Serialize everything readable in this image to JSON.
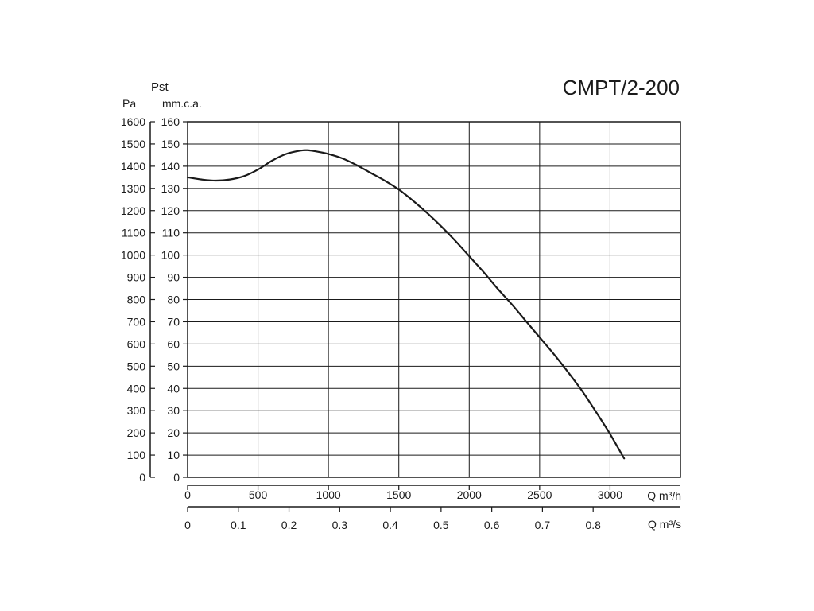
{
  "chart_data": {
    "type": "line",
    "title": "CMPT/2-200",
    "y_axis_title": "Pst",
    "y_left_unit": "Pa",
    "y_right_unit": "mm.c.a.",
    "x_top_unit": "Q m³/h",
    "x_bottom_unit": "Q m³/s",
    "grid": true,
    "x_top": {
      "range": [
        0,
        3500
      ],
      "ticks": [
        0,
        500,
        1000,
        1500,
        2000,
        2500,
        3000
      ],
      "tick_labels": [
        "0",
        "500",
        "1000",
        "1500",
        "2000",
        "2500",
        "3000"
      ]
    },
    "x_bottom": {
      "range": [
        0,
        0.9722
      ],
      "ticks": [
        0,
        0.1,
        0.2,
        0.3,
        0.4,
        0.5,
        0.6,
        0.7,
        0.8
      ],
      "tick_labels": [
        "0",
        "0.1",
        "0.2",
        "0.3",
        "0.4",
        "0.5",
        "0.6",
        "0.7",
        "0.8"
      ]
    },
    "y_left": {
      "range": [
        0,
        1600
      ],
      "ticks": [
        0,
        100,
        200,
        300,
        400,
        500,
        600,
        700,
        800,
        900,
        1000,
        1100,
        1200,
        1300,
        1400,
        1500,
        1600
      ],
      "tick_labels": [
        "0",
        "100",
        "200",
        "300",
        "400",
        "500",
        "600",
        "700",
        "800",
        "900",
        "1000",
        "1100",
        "1200",
        "1300",
        "1400",
        "1500",
        "1600"
      ]
    },
    "y_right": {
      "range": [
        0,
        160
      ],
      "ticks": [
        0,
        10,
        20,
        30,
        40,
        50,
        60,
        70,
        80,
        90,
        100,
        110,
        120,
        130,
        140,
        150,
        160
      ],
      "tick_labels": [
        "0",
        "10",
        "20",
        "30",
        "40",
        "50",
        "60",
        "70",
        "80",
        "90",
        "100",
        "110",
        "120",
        "130",
        "140",
        "150",
        "160"
      ]
    },
    "series": [
      {
        "color": "#1a1a1a",
        "x": [
          0,
          100,
          200,
          300,
          400,
          500,
          600,
          700,
          800,
          850,
          900,
          1000,
          1100,
          1200,
          1300,
          1400,
          1500,
          1600,
          1700,
          1800,
          1900,
          2000,
          2100,
          2200,
          2300,
          2400,
          2500,
          2600,
          2700,
          2800,
          2900,
          3000,
          3100
        ],
        "y": [
          1350,
          1340,
          1335,
          1340,
          1355,
          1385,
          1425,
          1455,
          1470,
          1472,
          1468,
          1455,
          1435,
          1405,
          1370,
          1335,
          1295,
          1245,
          1190,
          1130,
          1065,
          995,
          925,
          850,
          780,
          705,
          630,
          555,
          475,
          390,
          295,
          195,
          85
        ]
      }
    ]
  }
}
